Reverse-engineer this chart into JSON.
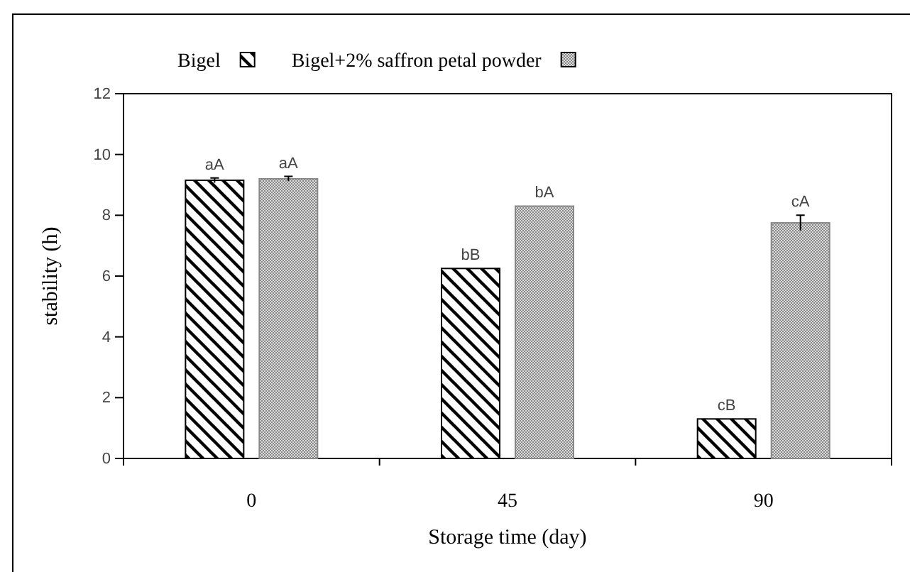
{
  "chart_data": {
    "type": "bar",
    "xlabel": "Storage time (day)",
    "ylabel": "stability (h)",
    "categories": [
      "0",
      "45",
      "90"
    ],
    "series": [
      {
        "name": "Bigel",
        "color": "#000000",
        "values": [
          9.15,
          6.25,
          1.3
        ],
        "errors": [
          0.08,
          null,
          null
        ],
        "value_labels": [
          "aA",
          "bB",
          "cB"
        ]
      },
      {
        "name": "Bigel+2% saffron petal powder",
        "color": "#888888",
        "values": [
          9.2,
          8.3,
          7.75
        ],
        "errors": [
          0.08,
          null,
          0.25
        ],
        "value_labels": [
          "aA",
          "bA",
          "cA"
        ]
      }
    ],
    "ylim": [
      0,
      12
    ],
    "yticks": [
      0,
      2,
      4,
      6,
      8,
      10,
      12
    ],
    "legend": "top",
    "grid": false
  }
}
